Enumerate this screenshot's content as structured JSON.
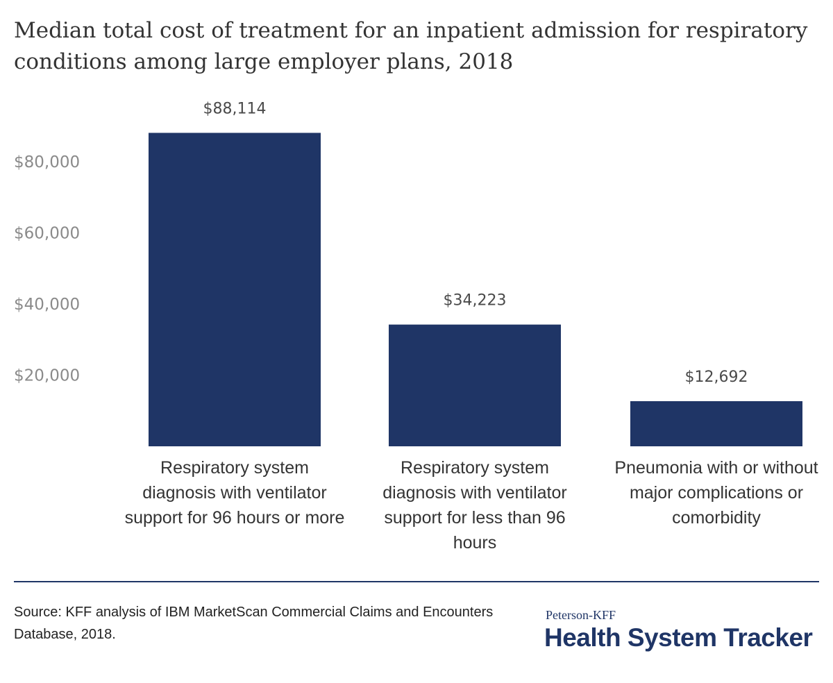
{
  "chart_data": {
    "type": "bar",
    "title": "Median total cost of treatment for an inpatient admission for respiratory conditions among large employer plans, 2018",
    "categories": [
      "Respiratory system diagnosis with ventilator support for 96 hours or more",
      "Respiratory system diagnosis with ventilator support for less than 96 hours",
      "Pneumonia with or without major complications or comorbidity"
    ],
    "values": [
      88114,
      34223,
      12692
    ],
    "value_labels": [
      "$88,114",
      "$34,223",
      "$12,692"
    ],
    "yticks": [
      20000,
      40000,
      60000,
      80000
    ],
    "ytick_labels": [
      "$20,000",
      "$40,000",
      "$60,000",
      "$80,000"
    ],
    "ylim": [
      0,
      100000
    ],
    "grid": false,
    "bar_color": "#1f3566"
  },
  "footer": {
    "source": "Source: KFF analysis of IBM MarketScan Commercial Claims and Encounters Database, 2018.",
    "brand_small": "Peterson-KFF",
    "brand_big": "Health System Tracker"
  }
}
